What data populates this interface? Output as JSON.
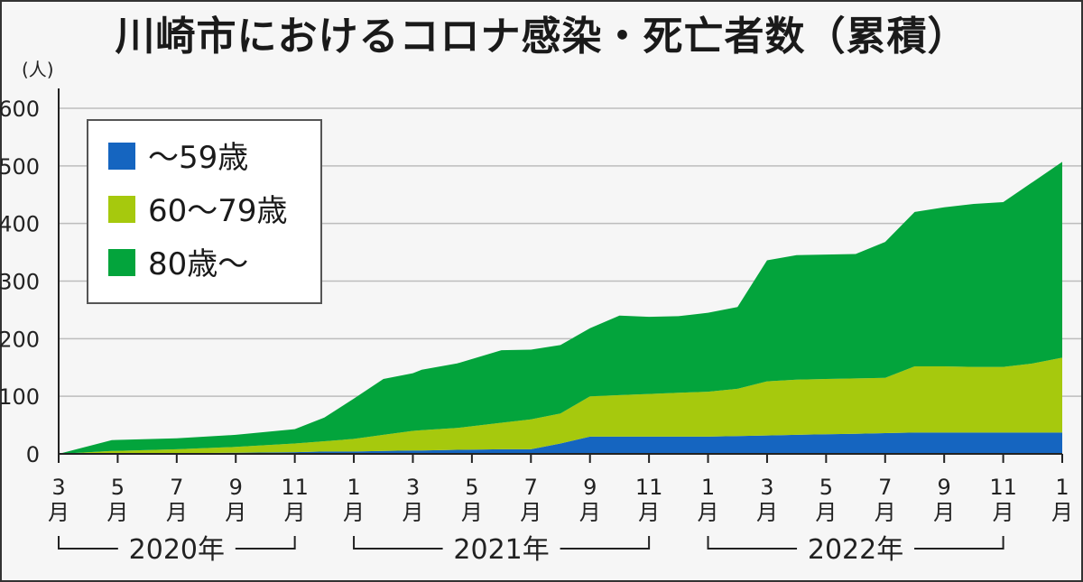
{
  "title": "川崎市におけるコロナ感染・死亡者数（累積）",
  "colors": {
    "under59": "#1565c0",
    "age60to79": "#a6c90d",
    "over80": "#03a43c",
    "grid": "#bdbdbd",
    "axis": "#222222"
  },
  "chart_data": {
    "type": "area",
    "stacked": true,
    "title": "川崎市におけるコロナ感染・死亡者数（累積）",
    "ylabel": "(人)",
    "ylim": [
      0,
      600
    ],
    "yticks": [
      0,
      100,
      200,
      300,
      400,
      500,
      600
    ],
    "grid": true,
    "legend_position": "top-left",
    "x_ticks": [
      {
        "idx": 0,
        "label": "3月"
      },
      {
        "idx": 2,
        "label": "5月"
      },
      {
        "idx": 4,
        "label": "7月"
      },
      {
        "idx": 6,
        "label": "9月"
      },
      {
        "idx": 8,
        "label": "11月"
      },
      {
        "idx": 10,
        "label": "1月"
      },
      {
        "idx": 12,
        "label": "3月"
      },
      {
        "idx": 14,
        "label": "5月"
      },
      {
        "idx": 16,
        "label": "7月"
      },
      {
        "idx": 18,
        "label": "9月"
      },
      {
        "idx": 20,
        "label": "11月"
      },
      {
        "idx": 22,
        "label": "1月"
      },
      {
        "idx": 24,
        "label": "3月"
      },
      {
        "idx": 26,
        "label": "5月"
      },
      {
        "idx": 28,
        "label": "7月"
      },
      {
        "idx": 30,
        "label": "9月"
      },
      {
        "idx": 32,
        "label": "11月"
      },
      {
        "idx": 34,
        "label": "1月"
      }
    ],
    "years": [
      {
        "label": "2020年",
        "from": 0,
        "to": 8
      },
      {
        "label": "2021年",
        "from": 10,
        "to": 20
      },
      {
        "label": "2022年",
        "from": 22,
        "to": 32
      }
    ],
    "x": [
      0,
      1.8,
      4,
      6,
      8,
      9,
      10,
      11,
      12,
      12.3,
      13.5,
      15,
      16,
      17,
      18,
      19,
      20,
      21,
      22,
      23,
      24,
      25,
      26,
      27,
      28,
      29,
      30,
      31,
      32,
      33,
      34
    ],
    "series": [
      {
        "name": "〜59歳",
        "key": "under59",
        "values": [
          0,
          1,
          1,
          2,
          3,
          4,
          4,
          5,
          6,
          6,
          7,
          8,
          8,
          18,
          30,
          30,
          30,
          30,
          30,
          31,
          32,
          33,
          34,
          35,
          36,
          37,
          37,
          37,
          37,
          37,
          37
        ]
      },
      {
        "name": "60〜79歳",
        "key": "age60to79",
        "values": [
          0,
          4,
          7,
          10,
          15,
          18,
          22,
          28,
          34,
          35,
          38,
          46,
          52,
          52,
          70,
          72,
          74,
          76,
          78,
          82,
          94,
          96,
          96,
          96,
          96,
          115,
          115,
          114,
          114,
          120,
          130
        ]
      },
      {
        "name": "80歳〜",
        "key": "over80",
        "values": [
          0,
          19,
          19,
          21,
          25,
          41,
          70,
          97,
          100,
          105,
          112,
          126,
          121,
          119,
          118,
          138,
          134,
          133,
          137,
          142,
          210,
          216,
          216,
          216,
          236,
          268,
          276,
          283,
          286,
          315,
          340
        ]
      }
    ]
  }
}
